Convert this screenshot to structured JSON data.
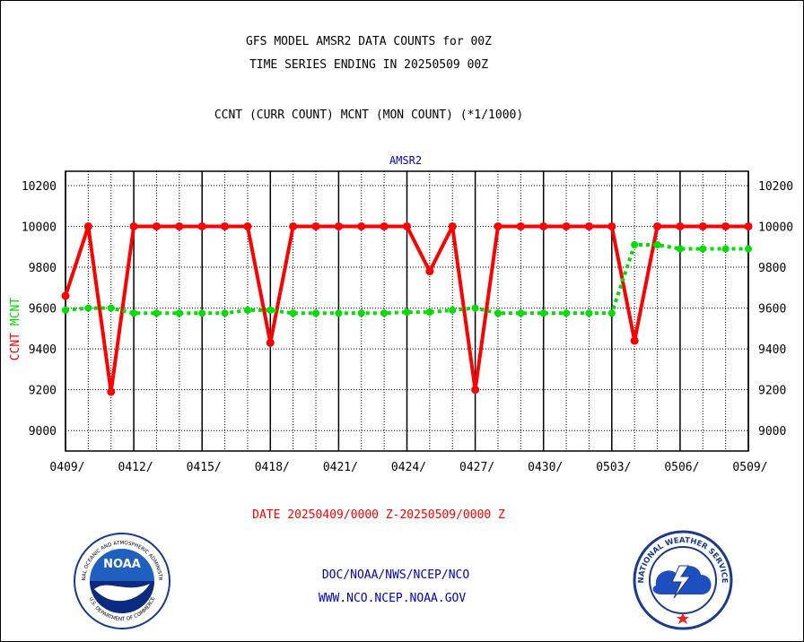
{
  "header": {
    "title_line1": "GFS MODEL AMSR2 DATA COUNTS for 00Z",
    "title_line2": "TIME SERIES ENDING IN 20250509 00Z",
    "subtitle": "CCNT (CURR COUNT) MCNT (MON COUNT) (*1/1000)"
  },
  "footer": {
    "date_range": "DATE 20250409/0000 Z-20250509/0000 Z",
    "org_line": "DOC/NOAA/NWS/NCEP/NCO",
    "url_line": "WWW.NCO.NCEP.NOAA.GOV"
  },
  "logos": {
    "noaa": {
      "center_text": "NOAA",
      "ring_top": "NATIONAL OCEANIC AND ATMOSPHERIC ADMINISTRATION",
      "ring_bottom": "U.S. DEPARTMENT OF COMMERCE"
    },
    "nws": {
      "ring_top": "NATIONAL WEATHER SERVICE"
    }
  },
  "colors": {
    "ccnt": "#ff0000",
    "mcnt": "#00dd00",
    "title_blue": "#0000cc",
    "date_red": "#ff0000"
  },
  "chart_data": {
    "type": "line",
    "title": "AMSR2",
    "ylabel_ccnt": "CCNT",
    "ylabel_mcnt": "MCNT",
    "ylim": [
      8900,
      10270
    ],
    "yticks": [
      9000,
      9200,
      9400,
      9600,
      9800,
      10000,
      10200
    ],
    "xlim": [
      0,
      30
    ],
    "xtick_labels": [
      "0409/",
      "0412/",
      "0415/",
      "0418/",
      "0421/",
      "0424/",
      "0427/",
      "0430/",
      "0503/",
      "0506/",
      "0509/"
    ],
    "grid": true,
    "series": [
      {
        "name": "CCNT",
        "color": "#ff0000",
        "style": "solid",
        "x": [
          0,
          1,
          2,
          3,
          4,
          5,
          6,
          7,
          8,
          9,
          10,
          11,
          12,
          13,
          14,
          15,
          16,
          17,
          18,
          19,
          20,
          21,
          22,
          23,
          24,
          25,
          26,
          27,
          28,
          29,
          30
        ],
        "values": [
          9660,
          10000,
          9190,
          10000,
          10000,
          10000,
          10000,
          10000,
          10000,
          9430,
          10000,
          10000,
          10000,
          10000,
          10000,
          10000,
          9780,
          10000,
          9200,
          10000,
          10000,
          10000,
          10000,
          10000,
          10000,
          9440,
          10000,
          10000,
          10000,
          10000,
          10000
        ]
      },
      {
        "name": "MCNT",
        "color": "#00dd00",
        "style": "dotted",
        "x": [
          0,
          1,
          2,
          3,
          4,
          5,
          6,
          7,
          8,
          9,
          10,
          11,
          12,
          13,
          14,
          15,
          16,
          17,
          18,
          19,
          20,
          21,
          22,
          23,
          24,
          25,
          26,
          27,
          28,
          29,
          30
        ],
        "values": [
          9590,
          9600,
          9600,
          9575,
          9575,
          9575,
          9575,
          9575,
          9590,
          9590,
          9575,
          9575,
          9575,
          9575,
          9575,
          9580,
          9580,
          9590,
          9600,
          9575,
          9575,
          9575,
          9575,
          9575,
          9575,
          9910,
          9910,
          9890,
          9890,
          9890,
          9890
        ]
      }
    ]
  }
}
